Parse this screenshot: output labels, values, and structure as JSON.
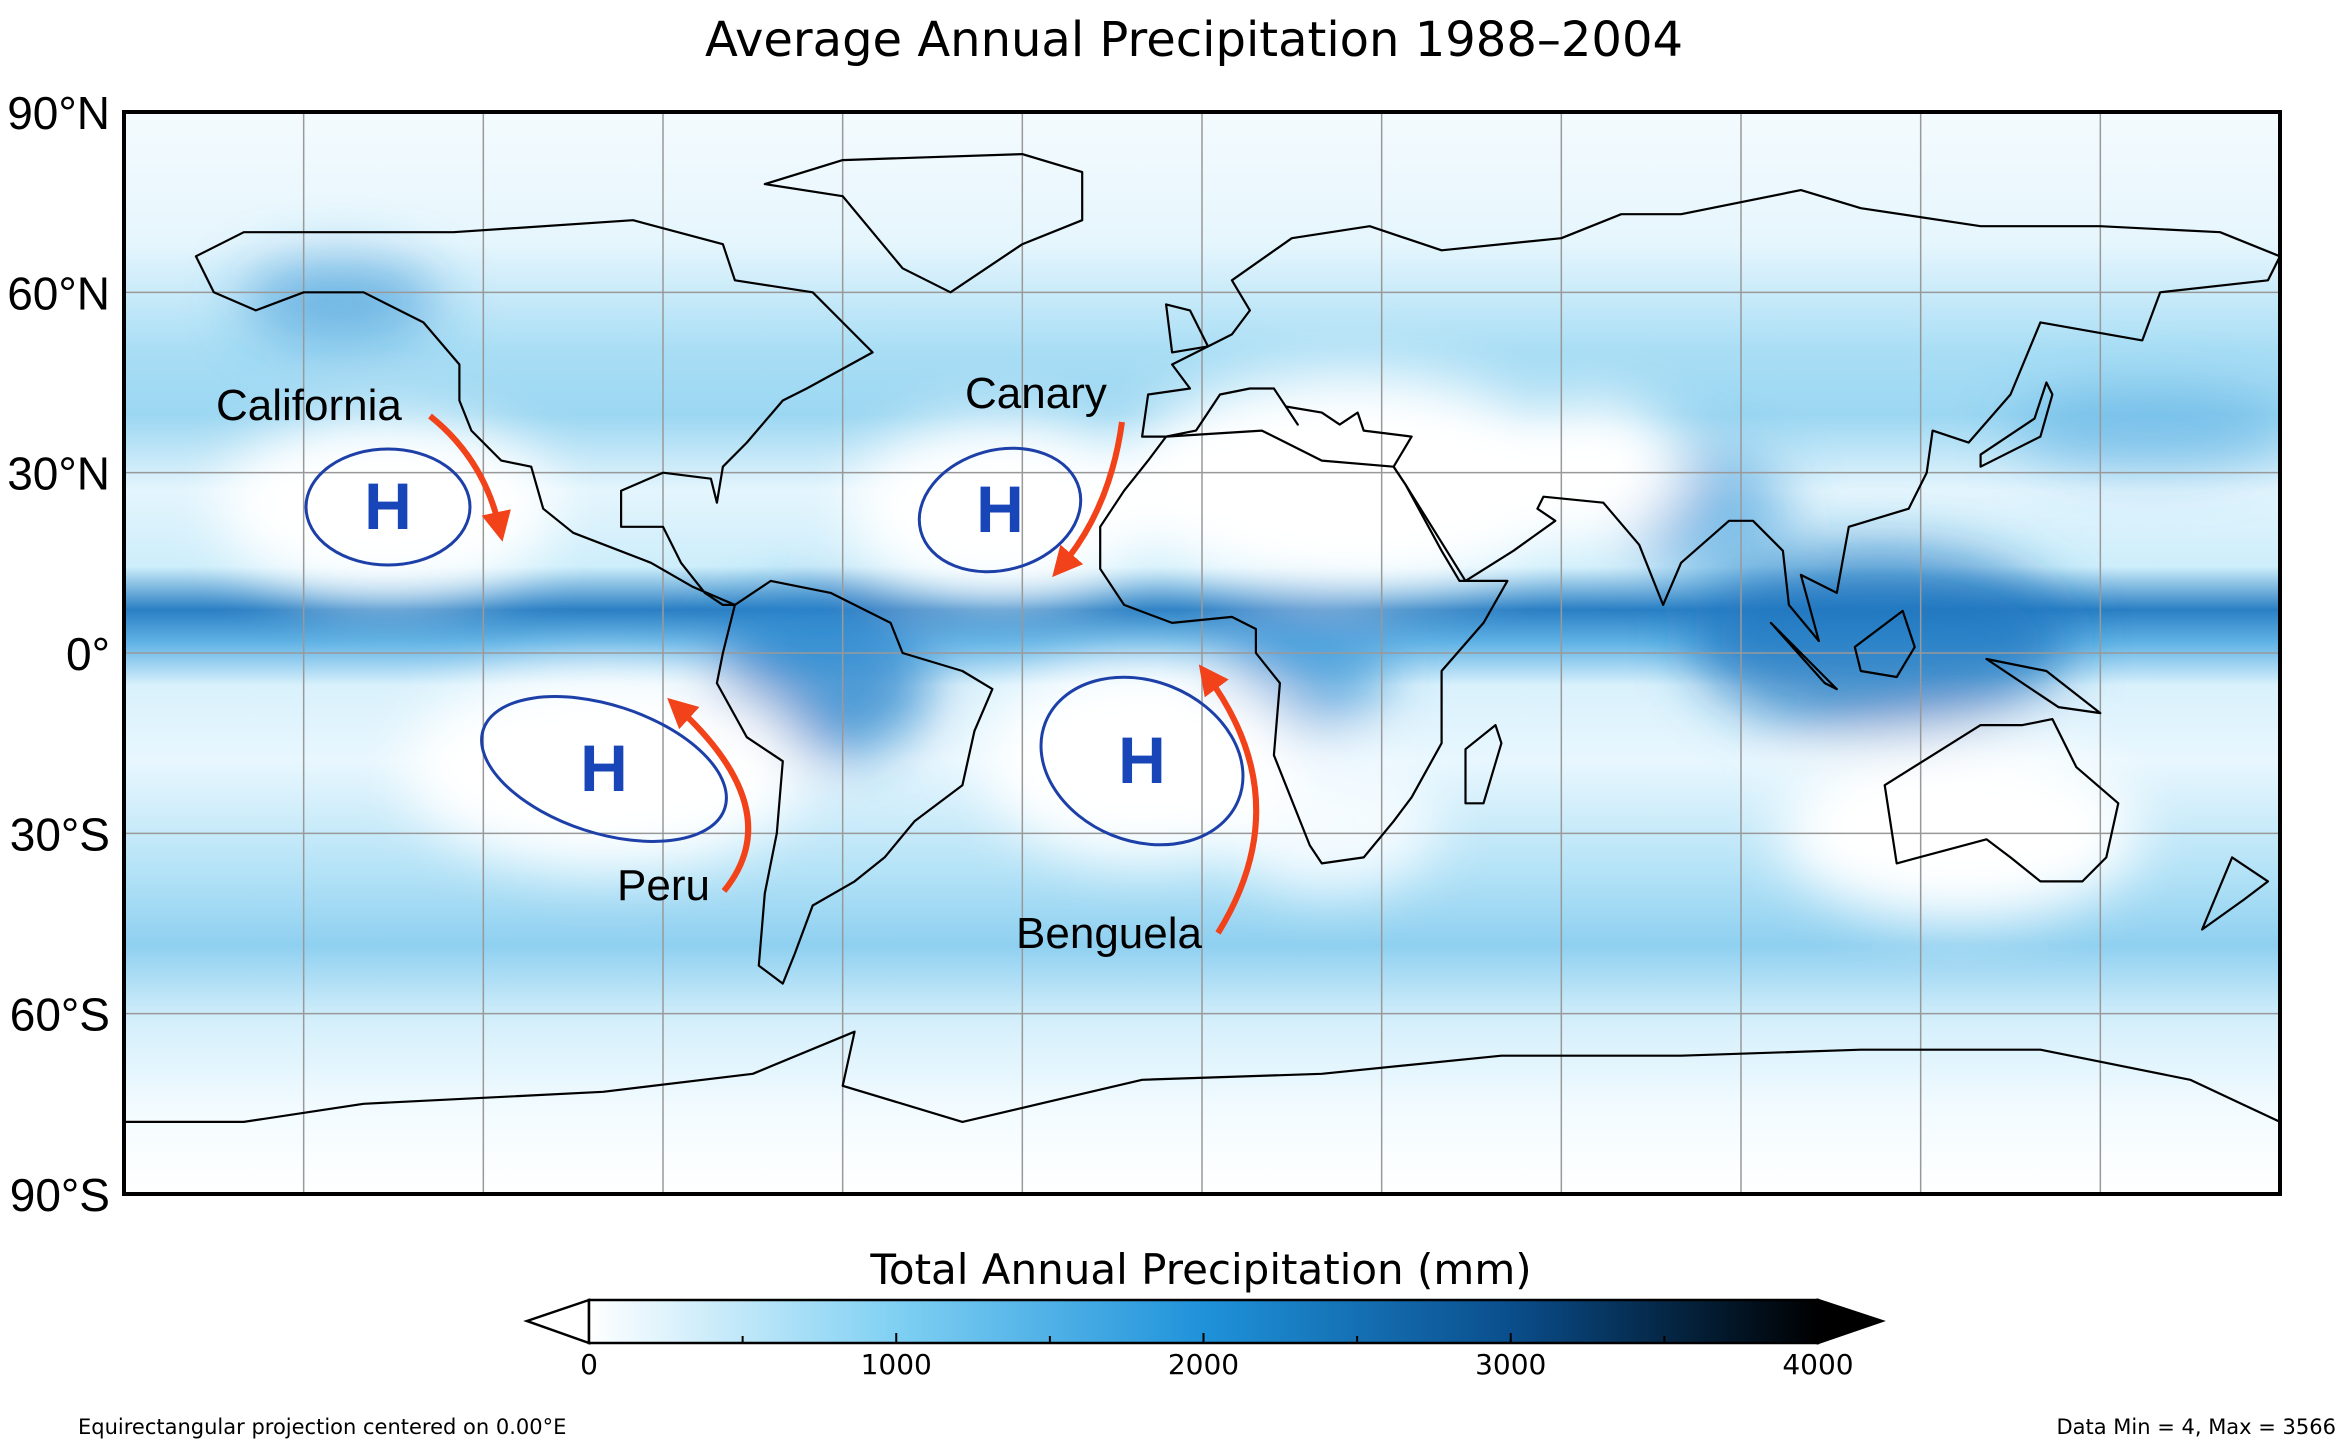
{
  "title": "Average Annual Precipitation 1988–2004",
  "lat_axis": {
    "lim": [
      -90,
      90
    ],
    "ticks": [
      {
        "value": 90,
        "label": "90°N"
      },
      {
        "value": 60,
        "label": "60°N"
      },
      {
        "value": 30,
        "label": "30°N"
      },
      {
        "value": 0,
        "label": "0°"
      },
      {
        "value": -30,
        "label": "30°S"
      },
      {
        "value": -60,
        "label": "60°S"
      },
      {
        "value": -90,
        "label": "90°S"
      }
    ]
  },
  "highs": [
    "H",
    "H",
    "H",
    "H"
  ],
  "currents": [
    "California",
    "Canary",
    "Peru",
    "Benguela"
  ],
  "colorbar": {
    "title": "Total Annual Precipitation (mm)",
    "lim": [
      0,
      4000
    ],
    "ticks": [
      0,
      1000,
      2000,
      3000,
      4000
    ]
  },
  "footer": {
    "projection": "Equirectangular projection centered on 0.00°E",
    "data_range": "Data Min = 4, Max = 3566"
  }
}
